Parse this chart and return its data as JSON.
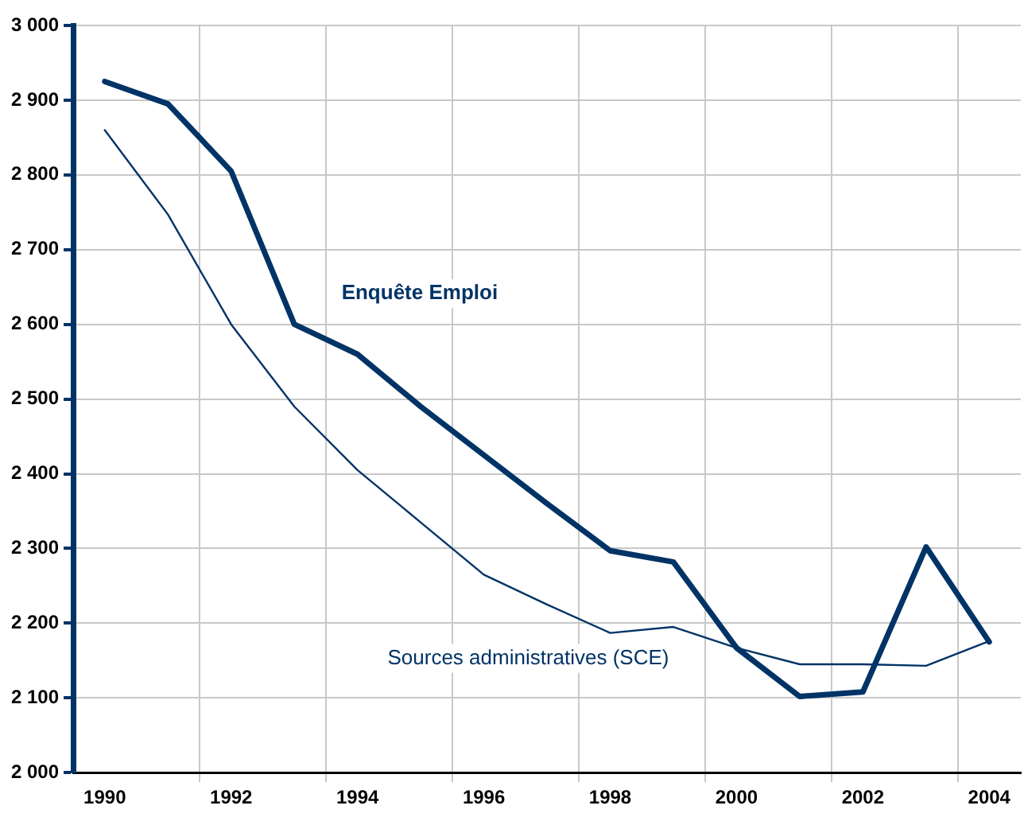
{
  "chart_data": {
    "type": "line",
    "categories": [
      "1990",
      null,
      "1992",
      null,
      "1994",
      null,
      "1996",
      null,
      "1998",
      null,
      "2000",
      null,
      "2002",
      null,
      "2004"
    ],
    "series": [
      {
        "name": "Enquête Emploi",
        "color": "#003366",
        "values": [
          2925,
          2895,
          2805,
          2600,
          2560,
          2490,
          2425,
          2360,
          2297,
          2282,
          2167,
          2102,
          2108,
          2302,
          2175
        ]
      },
      {
        "name": "Sources administratives (SCE)",
        "color": "#003366",
        "values": [
          2860,
          2747,
          2600,
          2490,
          2405,
          2335,
          2265,
          2225,
          2187,
          2195,
          2167,
          2145,
          2145,
          2143,
          2176
        ]
      }
    ],
    "ylim": [
      2000,
      3000
    ],
    "yticks": [
      {
        "value": 2000,
        "label": "2 000"
      },
      {
        "value": 2100,
        "label": "2 100"
      },
      {
        "value": 2200,
        "label": "2 200"
      },
      {
        "value": 2300,
        "label": "2 300"
      },
      {
        "value": 2400,
        "label": "2 400"
      },
      {
        "value": 2500,
        "label": "2 500"
      },
      {
        "value": 2600,
        "label": "2 600"
      },
      {
        "value": 2700,
        "label": "2 700"
      },
      {
        "value": 2800,
        "label": "2 800"
      },
      {
        "value": 2900,
        "label": "2 900"
      },
      {
        "value": 3000,
        "label": "3 000"
      }
    ],
    "grid": true,
    "legend": false,
    "marker": "none",
    "line_style": "solid"
  }
}
